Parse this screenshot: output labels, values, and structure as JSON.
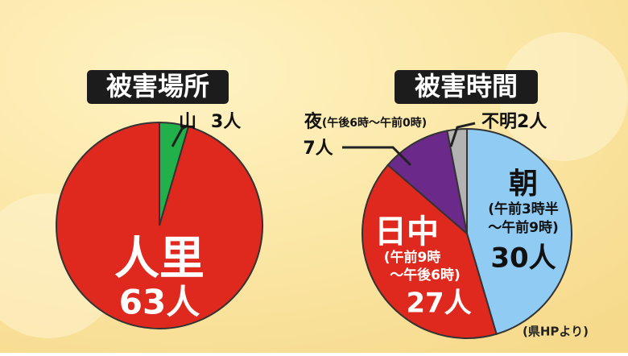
{
  "chart_data": [
    {
      "type": "pie",
      "title": "被害場所",
      "categories": [
        "山",
        "人里"
      ],
      "values": [
        3,
        63
      ],
      "value_labels": [
        "3人",
        "63人"
      ],
      "colors": [
        "#22b04a",
        "#e0291e"
      ]
    },
    {
      "type": "pie",
      "title": "被害時間",
      "categories": [
        "朝",
        "日中",
        "夜",
        "不明"
      ],
      "values": [
        30,
        27,
        7,
        2
      ],
      "value_labels": [
        "30人",
        "27人",
        "7人",
        "2人"
      ],
      "sublabels": [
        [
          "(午前3時半",
          "〜午前9時)"
        ],
        [
          "(午前9時",
          "〜午後6時)"
        ],
        [
          "(午後6時〜午前0時)"
        ],
        null
      ],
      "colors": [
        "#8fcbf3",
        "#e0291e",
        "#6b2a8a",
        "#b3b3b3"
      ]
    }
  ],
  "source": "(県HPより)"
}
